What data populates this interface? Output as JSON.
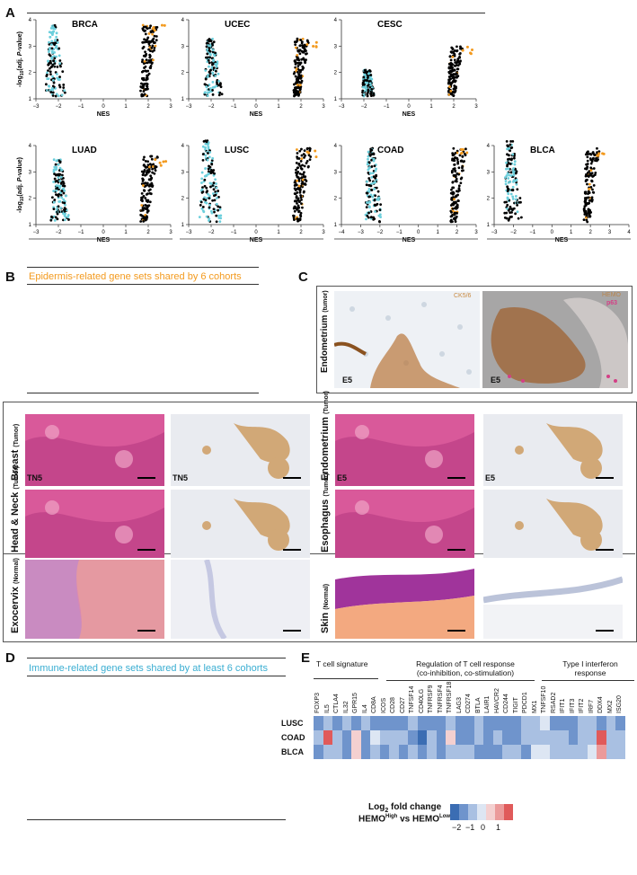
{
  "panels": {
    "A": "A",
    "B": "B",
    "C": "C",
    "D": "D",
    "E": "E"
  },
  "panel_a": {
    "ylabel_main": "-log",
    "ylabel_sub": "10",
    "ylabel_rest": "(adj. ",
    "ylabel_p": "P",
    "ylabel_end": "-value)",
    "xlabel": "NES",
    "colors": {
      "pos_black": "#000000",
      "neg_cyan": "#6ccfdc",
      "orange": "#f39a1e"
    }
  },
  "chart_data": [
    {
      "type": "scatter",
      "title": "BRCA",
      "xlabel": "NES",
      "xlim": [
        -3,
        3
      ],
      "ylim": [
        1,
        4
      ],
      "xticks": [
        "−3",
        "−2",
        "−1",
        "0",
        "1",
        "2",
        "3"
      ],
      "yticks": [
        "1",
        "2",
        "3",
        "4"
      ],
      "neg_center": -2.1,
      "pos_center": 1.8,
      "neg_ymax": 3.8,
      "pos_ymax": 3.8
    },
    {
      "type": "scatter",
      "title": "UCEC",
      "xlabel": "NES",
      "xlim": [
        -3,
        3
      ],
      "ylim": [
        1,
        4
      ],
      "xticks": [
        "−3",
        "−2",
        "−1",
        "0",
        "1",
        "2",
        "3"
      ],
      "yticks": [
        "1",
        "2",
        "3",
        "4"
      ],
      "neg_center": -1.9,
      "pos_center": 1.8,
      "neg_ymax": 3.3,
      "pos_ymax": 3.3
    },
    {
      "type": "scatter",
      "title": "CESC",
      "xlabel": "NES",
      "xlim": [
        -3,
        3
      ],
      "ylim": [
        1,
        4
      ],
      "xticks": [
        "−3",
        "−2",
        "−1",
        "0",
        "1",
        "2",
        "3"
      ],
      "yticks": [
        "1",
        "2",
        "3",
        "4"
      ],
      "neg_center": -1.8,
      "pos_center": 1.9,
      "neg_ymax": 2.1,
      "pos_ymax": 3.0
    },
    {
      "type": "scatter",
      "title": "LUAD",
      "xlabel": "NES",
      "xlim": [
        -3,
        3
      ],
      "ylim": [
        1,
        4
      ],
      "xticks": [
        "−3",
        "−2",
        "−1",
        "0",
        "1",
        "2",
        "3"
      ],
      "yticks": [
        "1",
        "2",
        "3",
        "4"
      ],
      "neg_center": -1.9,
      "pos_center": 1.8,
      "neg_ymax": 3.5,
      "pos_ymax": 3.6
    },
    {
      "type": "scatter",
      "title": "LUSC",
      "xlabel": "NES",
      "xlim": [
        -3,
        3
      ],
      "ylim": [
        1,
        4
      ],
      "xticks": [
        "−3",
        "−2",
        "−1",
        "0",
        "1",
        "2",
        "3"
      ],
      "yticks": [
        "1",
        "2",
        "3",
        "4"
      ],
      "neg_center": -2.0,
      "pos_center": 1.8,
      "neg_ymax": 4.2,
      "pos_ymax": 3.9
    },
    {
      "type": "scatter",
      "title": "COAD",
      "xlabel": "NES",
      "xlim": [
        -4,
        3
      ],
      "ylim": [
        1,
        4
      ],
      "xticks": [
        "−4",
        "−3",
        "−2",
        "−1",
        "0",
        "1",
        "2",
        "3"
      ],
      "yticks": [
        "1",
        "2",
        "3",
        "4"
      ],
      "neg_center": -2.3,
      "pos_center": 1.8,
      "neg_ymax": 3.9,
      "pos_ymax": 3.9
    },
    {
      "type": "scatter",
      "title": "BLCA",
      "xlabel": "NES",
      "xlim": [
        -3,
        4
      ],
      "ylim": [
        1,
        4
      ],
      "xticks": [
        "−3",
        "−2",
        "−1",
        "0",
        "1",
        "2",
        "3",
        "4"
      ],
      "yticks": [
        "1",
        "2",
        "3",
        "4"
      ],
      "neg_center": -2.0,
      "pos_center": 1.8,
      "neg_ymax": 4.2,
      "pos_ymax": 3.9
    }
  ],
  "panel_b": {
    "title": "Epidermis-related gene sets shared by 6 cohorts",
    "tiles": [
      {
        "tissue": "Breast",
        "qualifier": "(Tumor)",
        "code": "TN5"
      },
      {
        "tissue": "Head & Neck",
        "qualifier": "(Tumor)",
        "code": ""
      },
      {
        "tissue": "Endometrium",
        "qualifier": "(Tumor)",
        "code": "E5"
      },
      {
        "tissue": "Esophagus",
        "qualifier": "(Tumor)",
        "code": ""
      },
      {
        "tissue": "Exocervix",
        "qualifier": "(Normal)",
        "code": ""
      },
      {
        "tissue": "Skin",
        "qualifier": "(Normal)",
        "code": ""
      }
    ]
  },
  "panel_c": {
    "tissue": "Endometrium",
    "qualifier": "(tumor)",
    "left_stain": "CK5/6",
    "right_stain_1": "HEMO",
    "right_stain_2": "p63",
    "code": "E5"
  },
  "panel_d": {
    "title": "Immune-related gene sets shared by at least 6 cohorts"
  },
  "panel_e": {
    "groups": [
      {
        "label": "T cell signature"
      },
      {
        "label": "Regulation of T cell response\n(co-inhibition, co-stimulation)"
      },
      {
        "label": "Type I interferon\nresponse"
      }
    ],
    "group_l1": "Regulation of T cell response",
    "group_l2": "(co-inhibition, co-stimulation)",
    "group3_l1": "Type I interferon",
    "group3_l2": "response",
    "genes": [
      "FOXP3",
      "IL5",
      "CTLA4",
      "IL32",
      "GPR15",
      "IL4",
      "CD8A",
      "ICOS",
      "CD28",
      "CD27",
      "TNFSF14",
      "CD40LG",
      "TNFRSF9",
      "TNFRSF4",
      "TNFRSF18",
      "LAG3",
      "CD274",
      "BTLA",
      "LAIR1",
      "HAVCR2",
      "CD244",
      "TIGIT",
      "PDCD1",
      "MX1",
      "TNFSF10",
      "RSAD2",
      "IFIT1",
      "IFIT3",
      "IFIT2",
      "IRF7",
      "DDX4",
      "MX2",
      "ISG20"
    ],
    "rows": [
      "LUSC",
      "COAD",
      "BLCA"
    ],
    "values": [
      [
        -1.2,
        -0.6,
        -1.0,
        -0.8,
        -1.1,
        -0.7,
        -0.9,
        -1.3,
        -1.0,
        -1.2,
        -0.8,
        -1.4,
        -1.0,
        -1.1,
        -0.7,
        -1.1,
        -1.0,
        -0.8,
        -0.9,
        -1.2,
        -0.9,
        -1.0,
        -0.8,
        -0.8,
        -0.3,
        -1.0,
        -0.9,
        -1.0,
        -0.8,
        -0.7,
        -1.1,
        -0.8,
        -0.9
      ],
      [
        -0.5,
        1.5,
        -0.8,
        -1.0,
        0.2,
        -1.0,
        -0.4,
        -0.8,
        -0.6,
        -0.5,
        -0.9,
        -1.6,
        -0.8,
        -1.0,
        0.5,
        -1.1,
        -0.9,
        -0.6,
        -1.0,
        -0.8,
        -1.1,
        -0.9,
        -0.6,
        -0.8,
        -0.6,
        -0.7,
        -0.5,
        -0.9,
        -0.6,
        -0.8,
        1.3,
        -0.6,
        -0.8
      ],
      [
        -0.9,
        -0.8,
        -0.6,
        -1.0,
        0.4,
        -0.9,
        -0.7,
        -0.9,
        -0.8,
        -1.0,
        -0.7,
        -0.9,
        -0.8,
        -1.1,
        -0.6,
        -0.8,
        -0.7,
        -1.4,
        -0.9,
        -1.0,
        -0.8,
        -0.8,
        -1.0,
        -0.3,
        0.0,
        -0.7,
        -0.6,
        -0.5,
        -0.6,
        -0.4,
        0.6,
        -0.6,
        -0.5
      ]
    ],
    "legend_title_pre": "Log",
    "legend_title_sub": "2",
    "legend_title_post": " fold change",
    "legend_line2_pre": "HEMO",
    "legend_line2_sup1": "High",
    "legend_line2_mid": " vs HEMO",
    "legend_line2_sup2": "Low",
    "legend_ticks": [
      "−2",
      "−1",
      "0",
      "1"
    ],
    "colors": [
      "#3b6db3",
      "#6f94cc",
      "#a9c0e2",
      "#dde6f3",
      "#f4d0d0",
      "#eb9a9a",
      "#e05a5a"
    ]
  }
}
